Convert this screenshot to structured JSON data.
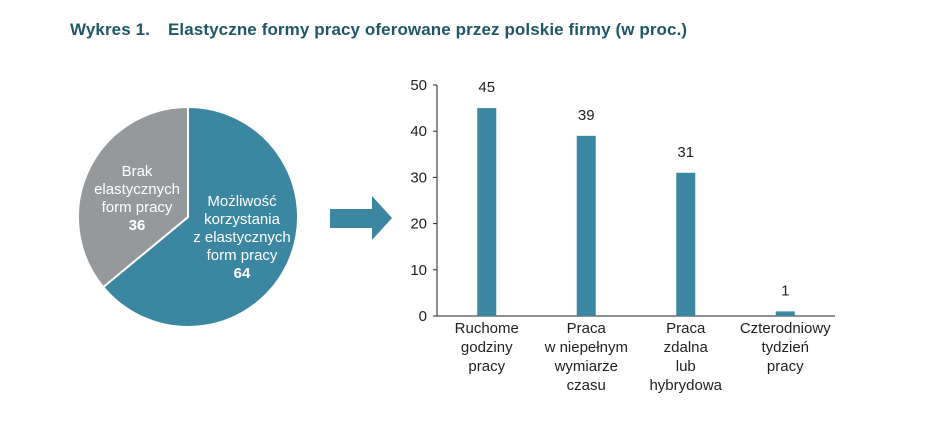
{
  "heading": {
    "number": "Wykres 1.",
    "text": "Elastyczne formy pracy oferowane przez polskie firmy (w proc.)"
  },
  "colors": {
    "teal": "#3b86a0",
    "gray": "#96999b",
    "title": "#1f5767",
    "axis": "#222222"
  },
  "chart_data": [
    {
      "type": "pie",
      "slices": [
        {
          "label_lines": [
            "Możliwość",
            "korzystania",
            "z elastycznych",
            "form pracy"
          ],
          "value": 64,
          "color": "#3b86a0"
        },
        {
          "label_lines": [
            "Brak",
            "elastycznych",
            "form pracy"
          ],
          "value": 36,
          "color": "#96999b"
        }
      ]
    },
    {
      "type": "bar",
      "ylim": [
        0,
        50
      ],
      "yticks": [
        0,
        10,
        20,
        30,
        40,
        50
      ],
      "grid": false,
      "color": "#3b86a0",
      "categories": [
        {
          "lines": [
            "Ruchome",
            "godziny",
            "pracy"
          ],
          "value": 45
        },
        {
          "lines": [
            "Praca",
            "w niepełnym",
            "wymiarze",
            "czasu"
          ],
          "value": 39
        },
        {
          "lines": [
            "Praca",
            "zdalna",
            "lub",
            "hybrydowa"
          ],
          "value": 31
        },
        {
          "lines": [
            "Czterodniowy",
            "tydzień",
            "pracy"
          ],
          "value": 1
        }
      ]
    }
  ]
}
